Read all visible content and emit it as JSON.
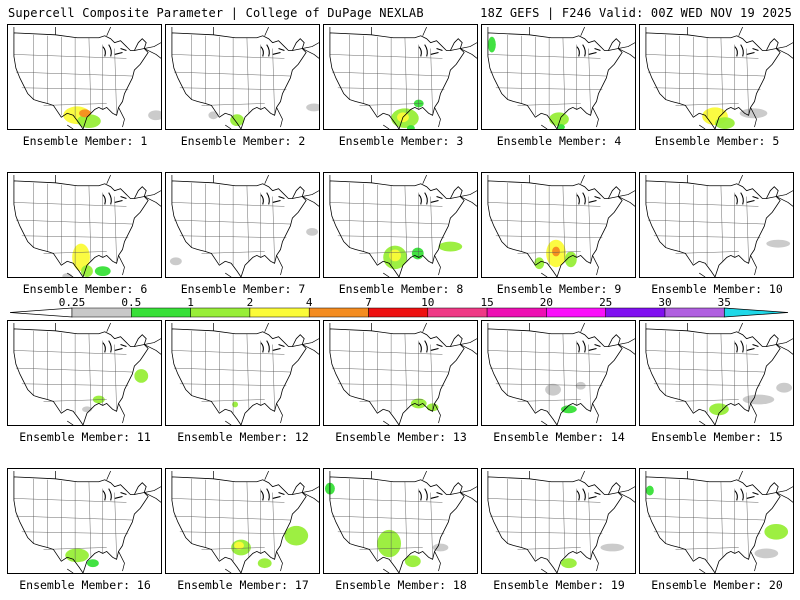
{
  "header": {
    "left": "Supercell Composite Parameter | College of DuPage NEXLAB",
    "right": "18Z GEFS | F246 Valid: 00Z WED NOV 19 2025"
  },
  "colorbar": {
    "thresholds": [
      "0.25",
      "0.5",
      "1",
      "2",
      "4",
      "7",
      "10",
      "15",
      "20",
      "25",
      "30",
      "35"
    ],
    "colors": [
      "#c8c8c8",
      "#38e038",
      "#98ee38",
      "#fbfb38",
      "#f48c20",
      "#ee1010",
      "#ef3a86",
      "#ee10b4",
      "#fa10fa",
      "#8010f0",
      "#b060e0",
      "#20d8e8"
    ]
  },
  "members": [
    {
      "label": "Ensemble Member: 1",
      "blobs": [
        [
          70,
          92,
          14,
          9,
          "#fbfb38"
        ],
        [
          82,
          98,
          12,
          7,
          "#98ee38"
        ],
        [
          78,
          90,
          6,
          4,
          "#f48c20"
        ],
        [
          150,
          92,
          8,
          5,
          "#c8c8c8"
        ]
      ]
    },
    {
      "label": "Ensemble Member: 2",
      "blobs": [
        [
          72,
          97,
          7,
          6,
          "#98ee38"
        ],
        [
          48,
          92,
          5,
          4,
          "#c8c8c8"
        ],
        [
          150,
          84,
          8,
          4,
          "#c8c8c8"
        ]
      ]
    },
    {
      "label": "Ensemble Member: 3",
      "blobs": [
        [
          82,
          95,
          14,
          10,
          "#98ee38"
        ],
        [
          80,
          94,
          6,
          5,
          "#fbfb38"
        ],
        [
          96,
          80,
          5,
          4,
          "#38e038"
        ],
        [
          88,
          105,
          4,
          3,
          "#38e038"
        ]
      ]
    },
    {
      "label": "Ensemble Member: 4",
      "blobs": [
        [
          78,
          96,
          10,
          7,
          "#98ee38"
        ],
        [
          80,
          104,
          4,
          3,
          "#38e038"
        ],
        [
          10,
          20,
          4,
          8,
          "#38e038"
        ]
      ]
    },
    {
      "label": "Ensemble Member: 5",
      "blobs": [
        [
          76,
          93,
          13,
          9,
          "#fbfb38"
        ],
        [
          86,
          100,
          10,
          6,
          "#98ee38"
        ],
        [
          115,
          90,
          14,
          5,
          "#c8c8c8"
        ]
      ]
    },
    {
      "label": "Ensemble Member: 6",
      "blobs": [
        [
          74,
          86,
          9,
          14,
          "#fbfb38"
        ],
        [
          80,
          100,
          6,
          6,
          "#98ee38"
        ],
        [
          96,
          100,
          8,
          5,
          "#38e038"
        ],
        [
          60,
          105,
          5,
          3,
          "#c8c8c8"
        ]
      ]
    },
    {
      "label": "Ensemble Member: 7",
      "blobs": [
        [
          148,
          60,
          6,
          4,
          "#c8c8c8"
        ],
        [
          10,
          90,
          6,
          4,
          "#c8c8c8"
        ]
      ]
    },
    {
      "label": "Ensemble Member: 8",
      "blobs": [
        [
          72,
          86,
          12,
          12,
          "#98ee38"
        ],
        [
          72,
          84,
          6,
          6,
          "#fbfb38"
        ],
        [
          95,
          82,
          6,
          6,
          "#38e038"
        ],
        [
          128,
          75,
          12,
          5,
          "#98ee38"
        ]
      ]
    },
    {
      "label": "Ensemble Member: 9",
      "blobs": [
        [
          75,
          82,
          10,
          14,
          "#fbfb38"
        ],
        [
          75,
          80,
          4,
          5,
          "#f48c20"
        ],
        [
          90,
          88,
          6,
          8,
          "#98ee38"
        ],
        [
          58,
          92,
          5,
          6,
          "#98ee38"
        ]
      ]
    },
    {
      "label": "Ensemble Member: 10",
      "blobs": [
        [
          140,
          72,
          12,
          4,
          "#c8c8c8"
        ]
      ]
    },
    {
      "label": "Ensemble Member: 11",
      "blobs": [
        [
          135,
          56,
          7,
          7,
          "#98ee38"
        ],
        [
          92,
          80,
          6,
          4,
          "#98ee38"
        ],
        [
          80,
          90,
          5,
          3,
          "#c8c8c8"
        ]
      ]
    },
    {
      "label": "Ensemble Member: 12",
      "blobs": [
        [
          70,
          85,
          3,
          3,
          "#98ee38"
        ]
      ]
    },
    {
      "label": "Ensemble Member: 13",
      "blobs": [
        [
          96,
          84,
          8,
          5,
          "#98ee38"
        ],
        [
          110,
          88,
          6,
          4,
          "#98ee38"
        ]
      ]
    },
    {
      "label": "Ensemble Member: 14",
      "blobs": [
        [
          72,
          70,
          8,
          6,
          "#c8c8c8"
        ],
        [
          100,
          66,
          5,
          4,
          "#c8c8c8"
        ],
        [
          88,
          90,
          8,
          4,
          "#38e038"
        ]
      ]
    },
    {
      "label": "Ensemble Member: 15",
      "blobs": [
        [
          80,
          90,
          10,
          6,
          "#98ee38"
        ],
        [
          120,
          80,
          16,
          5,
          "#c8c8c8"
        ],
        [
          146,
          68,
          8,
          5,
          "#c8c8c8"
        ]
      ]
    },
    {
      "label": "Ensemble Member: 16",
      "blobs": [
        [
          70,
          88,
          12,
          7,
          "#98ee38"
        ],
        [
          86,
          96,
          6,
          4,
          "#38e038"
        ]
      ]
    },
    {
      "label": "Ensemble Member: 17",
      "blobs": [
        [
          76,
          80,
          10,
          8,
          "#98ee38"
        ],
        [
          74,
          78,
          5,
          4,
          "#fbfb38"
        ],
        [
          132,
          68,
          12,
          10,
          "#98ee38"
        ],
        [
          100,
          96,
          7,
          5,
          "#98ee38"
        ]
      ]
    },
    {
      "label": "Ensemble Member: 18",
      "blobs": [
        [
          66,
          76,
          12,
          14,
          "#98ee38"
        ],
        [
          90,
          94,
          8,
          6,
          "#98ee38"
        ],
        [
          6,
          20,
          5,
          6,
          "#38e038"
        ],
        [
          118,
          80,
          8,
          4,
          "#c8c8c8"
        ]
      ]
    },
    {
      "label": "Ensemble Member: 19",
      "blobs": [
        [
          88,
          96,
          8,
          5,
          "#98ee38"
        ],
        [
          132,
          80,
          12,
          4,
          "#c8c8c8"
        ]
      ]
    },
    {
      "label": "Ensemble Member: 20",
      "blobs": [
        [
          138,
          64,
          12,
          8,
          "#98ee38"
        ],
        [
          128,
          86,
          12,
          5,
          "#c8c8c8"
        ],
        [
          10,
          22,
          4,
          5,
          "#38e038"
        ]
      ]
    }
  ]
}
